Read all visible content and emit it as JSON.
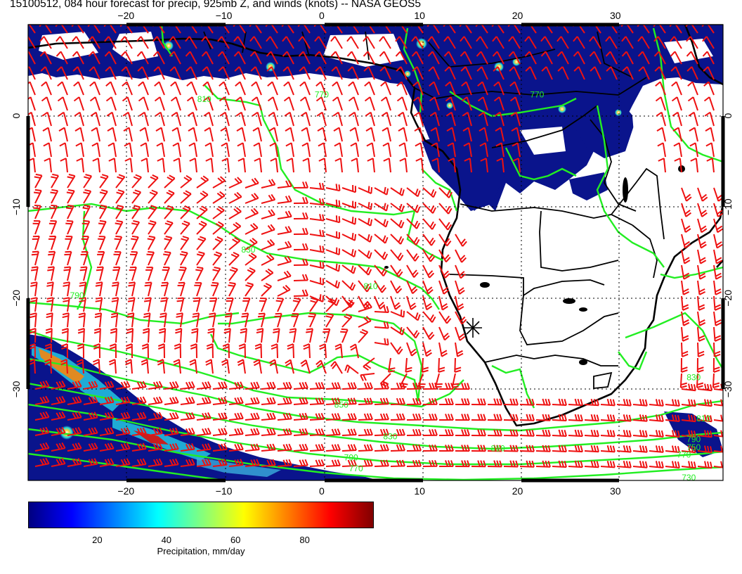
{
  "title": "15100512, 084 hour forecast for precip, 925mb Z, and winds (knots) -- NASA GEOS5",
  "map": {
    "lon_range": [
      -30,
      41
    ],
    "lat_range": [
      -40,
      10
    ],
    "lon_ticks": [
      {
        "value": -20,
        "label": "−20"
      },
      {
        "value": -10,
        "label": "−10"
      },
      {
        "value": 0,
        "label": "0"
      },
      {
        "value": 10,
        "label": "10"
      },
      {
        "value": 20,
        "label": "20"
      },
      {
        "value": 30,
        "label": "30"
      }
    ],
    "lat_ticks": [
      {
        "value": 0,
        "label": "0"
      },
      {
        "value": -10,
        "label": "−10"
      },
      {
        "value": -20,
        "label": "−20"
      },
      {
        "value": -30,
        "label": "−30"
      }
    ],
    "contour_labels": [
      {
        "label": "810",
        "lon": -12,
        "lat": 1.5
      },
      {
        "label": "830",
        "lon": -7.5,
        "lat": -15
      },
      {
        "label": "810",
        "lon": 5,
        "lat": -19
      },
      {
        "label": "790",
        "lon": -25,
        "lat": -20
      },
      {
        "label": "850",
        "lon": 2,
        "lat": -32
      },
      {
        "label": "830",
        "lon": 7,
        "lat": -35.5
      },
      {
        "label": "810",
        "lon": 18,
        "lat": -36.8
      },
      {
        "label": "790",
        "lon": 3,
        "lat": -37.8
      },
      {
        "label": "770",
        "lon": 3.5,
        "lat": -39
      },
      {
        "label": "770",
        "lon": 37,
        "lat": -37.5
      },
      {
        "label": "830",
        "lon": 38,
        "lat": -29
      },
      {
        "label": "810",
        "lon": 39,
        "lat": -33.5
      },
      {
        "label": "790",
        "lon": 38,
        "lat": -35.8
      },
      {
        "label": "750",
        "lon": 38,
        "lat": -36.7
      },
      {
        "label": "730",
        "lon": 37.5,
        "lat": -40
      },
      {
        "label": "770",
        "lon": 0,
        "lat": 2
      },
      {
        "label": "770",
        "lon": 22,
        "lat": 2
      }
    ],
    "marker_label": "cross-marker",
    "colors": {
      "contour": "#22ee22",
      "wind": "#ee1111",
      "land": "#000000",
      "precip_low": "#0a148c"
    }
  },
  "colorbar": {
    "title": "Precipitation, mm/day",
    "range": [
      0,
      100
    ],
    "ticks": [
      {
        "value": 20,
        "label": "20"
      },
      {
        "value": 40,
        "label": "40"
      },
      {
        "value": 60,
        "label": "60"
      },
      {
        "value": 80,
        "label": "80"
      }
    ],
    "stops": [
      "#000080",
      "#0000ff",
      "#0080ff",
      "#00ffff",
      "#80ff80",
      "#ffff00",
      "#ff8000",
      "#ff0000",
      "#800000"
    ]
  }
}
